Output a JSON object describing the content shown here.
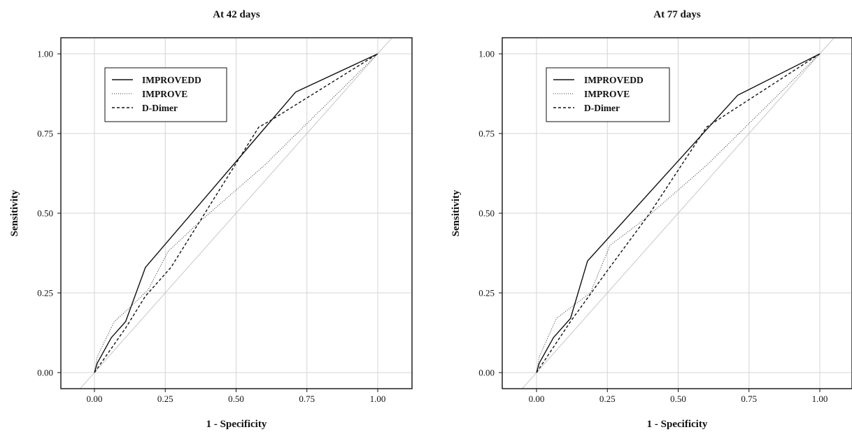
{
  "charts": [
    {
      "title": "At 42 days",
      "xlabel": "1 - Specificity",
      "ylabel": "Sensitivity",
      "xticks": [
        "0.00",
        "0.25",
        "0.50",
        "0.75",
        "1.00"
      ],
      "yticks": [
        "0.00",
        "0.25",
        "0.50",
        "0.75",
        "1.00"
      ],
      "legend": [
        "IMPROVEDD",
        "IMPROVE",
        "D-Dimer"
      ]
    },
    {
      "title": "At 77 days",
      "xlabel": "1 - Specificity",
      "ylabel": "Sensitivity",
      "xticks": [
        "0.00",
        "0.25",
        "0.50",
        "0.75",
        "1.00"
      ],
      "yticks": [
        "0.00",
        "0.25",
        "0.50",
        "0.75",
        "1.00"
      ],
      "legend": [
        "IMPROVEDD",
        "IMPROVE",
        "D-Dimer"
      ]
    }
  ],
  "chart_data": [
    {
      "type": "line",
      "title": "At 42 days",
      "xlabel": "1 - Specificity",
      "ylabel": "Sensitivity",
      "xlim": [
        -0.1,
        1.12
      ],
      "ylim": [
        -0.05,
        1.06
      ],
      "grid": true,
      "legend_position": "top-left",
      "reference_line": "diagonal",
      "series": [
        {
          "name": "IMPROVEDD",
          "style": "solid",
          "x": [
            0,
            0.01,
            0.06,
            0.11,
            0.18,
            0.71,
            1.0
          ],
          "y": [
            0,
            0.03,
            0.11,
            0.16,
            0.33,
            0.88,
            1.0
          ]
        },
        {
          "name": "IMPROVE",
          "style": "dotted",
          "x": [
            0,
            0.01,
            0.07,
            0.12,
            0.19,
            0.26,
            0.38,
            0.6,
            1.0
          ],
          "y": [
            0,
            0.05,
            0.16,
            0.2,
            0.26,
            0.38,
            0.48,
            0.65,
            1.0
          ]
        },
        {
          "name": "D-Dimer",
          "style": "dashed",
          "x": [
            0,
            0.11,
            0.18,
            0.27,
            0.58,
            0.62,
            1.0
          ],
          "y": [
            0,
            0.14,
            0.24,
            0.33,
            0.77,
            0.79,
            1.0
          ]
        }
      ]
    },
    {
      "type": "line",
      "title": "At 77 days",
      "xlabel": "1 - Specificity",
      "ylabel": "Sensitivity",
      "xlim": [
        -0.1,
        1.12
      ],
      "ylim": [
        -0.05,
        1.06
      ],
      "grid": true,
      "legend_position": "top-left",
      "reference_line": "diagonal",
      "series": [
        {
          "name": "IMPROVEDD",
          "style": "solid",
          "x": [
            0,
            0.01,
            0.06,
            0.12,
            0.18,
            0.71,
            1.0
          ],
          "y": [
            0,
            0.03,
            0.11,
            0.17,
            0.35,
            0.87,
            1.0
          ]
        },
        {
          "name": "IMPROVE",
          "style": "dotted",
          "x": [
            0,
            0.01,
            0.07,
            0.13,
            0.19,
            0.26,
            0.38,
            0.6,
            1.0
          ],
          "y": [
            0,
            0.05,
            0.17,
            0.21,
            0.25,
            0.4,
            0.48,
            0.65,
            1.0
          ]
        },
        {
          "name": "D-Dimer",
          "style": "dashed",
          "x": [
            0,
            0.12,
            0.25,
            0.4,
            0.6,
            1.0
          ],
          "y": [
            0,
            0.16,
            0.32,
            0.5,
            0.77,
            1.0
          ]
        }
      ]
    }
  ]
}
